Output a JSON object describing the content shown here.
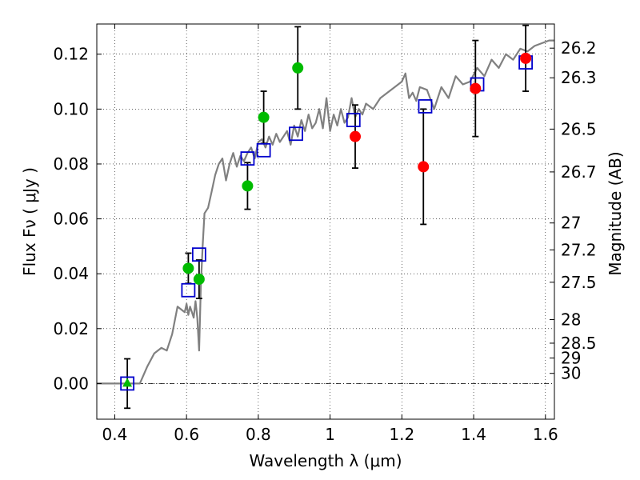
{
  "chart_data": {
    "type": "scatter",
    "title": "",
    "xlabel": "Wavelength  λ (μm)",
    "ylabel": "Flux  Fν  ( μJy )",
    "y2label": "Magnitude (AB)",
    "xlim": [
      0.35,
      1.625
    ],
    "ylim": [
      -0.013,
      0.131
    ],
    "grid": true,
    "x_ticks": [
      0.4,
      0.6,
      0.8,
      1.0,
      1.2,
      1.4,
      1.6
    ],
    "x_tick_labels": [
      "0.4",
      "0.6",
      "0.8",
      "1",
      "1.2",
      "1.4",
      "1.6"
    ],
    "y_ticks": [
      0.0,
      0.02,
      0.04,
      0.06,
      0.08,
      0.1,
      0.12
    ],
    "y_tick_labels": [
      "0.00",
      "0.02",
      "0.04",
      "0.06",
      "0.08",
      "0.10",
      "0.12"
    ],
    "magnitude_ticks": [
      {
        "label": "26.2",
        "flux": 0.1222
      },
      {
        "label": "26.3",
        "flux": 0.1114
      },
      {
        "label": "26.5",
        "flux": 0.0927
      },
      {
        "label": "26.7",
        "flux": 0.0771
      },
      {
        "label": "27",
        "flux": 0.0585
      },
      {
        "label": "27.2",
        "flux": 0.0487
      },
      {
        "label": "27.5",
        "flux": 0.0369
      },
      {
        "label": "28",
        "flux": 0.0233
      },
      {
        "label": "28.5",
        "flux": 0.0147
      },
      {
        "label": "29",
        "flux": 0.0093
      },
      {
        "label": "30",
        "flux": 0.0037
      }
    ],
    "series": [
      {
        "name": "",
        "kind": "line",
        "color": "#808080",
        "x": [
          0.35,
          0.47,
          0.49,
          0.51,
          0.53,
          0.545,
          0.56,
          0.575,
          0.585,
          0.595,
          0.6,
          0.605,
          0.61,
          0.615,
          0.62,
          0.625,
          0.63,
          0.635,
          0.64,
          0.645,
          0.65,
          0.66,
          0.67,
          0.68,
          0.69,
          0.7,
          0.71,
          0.72,
          0.73,
          0.74,
          0.75,
          0.76,
          0.77,
          0.78,
          0.79,
          0.8,
          0.81,
          0.82,
          0.83,
          0.84,
          0.85,
          0.86,
          0.87,
          0.88,
          0.89,
          0.9,
          0.91,
          0.92,
          0.93,
          0.94,
          0.95,
          0.96,
          0.97,
          0.98,
          0.99,
          1.0,
          1.01,
          1.02,
          1.03,
          1.04,
          1.05,
          1.06,
          1.07,
          1.08,
          1.09,
          1.1,
          1.12,
          1.14,
          1.16,
          1.18,
          1.2,
          1.21,
          1.22,
          1.23,
          1.24,
          1.25,
          1.27,
          1.29,
          1.31,
          1.33,
          1.35,
          1.37,
          1.39,
          1.41,
          1.43,
          1.45,
          1.47,
          1.49,
          1.51,
          1.53,
          1.55,
          1.57,
          1.59,
          1.61,
          1.625
        ],
        "y": [
          0.0,
          0.0,
          0.006,
          0.011,
          0.013,
          0.012,
          0.018,
          0.028,
          0.027,
          0.026,
          0.029,
          0.025,
          0.028,
          0.026,
          0.024,
          0.03,
          0.024,
          0.012,
          0.036,
          0.05,
          0.062,
          0.064,
          0.07,
          0.076,
          0.08,
          0.082,
          0.074,
          0.08,
          0.084,
          0.079,
          0.083,
          0.081,
          0.084,
          0.086,
          0.082,
          0.088,
          0.089,
          0.086,
          0.09,
          0.087,
          0.091,
          0.088,
          0.09,
          0.092,
          0.087,
          0.094,
          0.09,
          0.096,
          0.092,
          0.098,
          0.093,
          0.095,
          0.1,
          0.093,
          0.104,
          0.092,
          0.098,
          0.094,
          0.1,
          0.095,
          0.097,
          0.104,
          0.097,
          0.1,
          0.098,
          0.102,
          0.1,
          0.104,
          0.106,
          0.108,
          0.11,
          0.113,
          0.104,
          0.106,
          0.103,
          0.108,
          0.107,
          0.1,
          0.108,
          0.104,
          0.112,
          0.109,
          0.11,
          0.115,
          0.112,
          0.118,
          0.115,
          0.12,
          0.118,
          0.122,
          0.121,
          0.123,
          0.124,
          0.125,
          0.125
        ]
      },
      {
        "name": "",
        "kind": "open-square",
        "color": "#0000cc",
        "x": [
          0.435,
          0.605,
          0.635,
          0.77,
          0.815,
          0.905,
          1.065,
          1.265,
          1.41,
          1.545
        ],
        "y": [
          0.0,
          0.034,
          0.047,
          0.082,
          0.085,
          0.091,
          0.096,
          0.101,
          0.109,
          0.117
        ]
      },
      {
        "name": "",
        "kind": "filled-circle",
        "color": "#00bb00",
        "x": [
          0.605,
          0.635,
          0.77,
          0.815,
          0.91
        ],
        "y": [
          0.042,
          0.038,
          0.072,
          0.097,
          0.115
        ],
        "err": [
          0.0055,
          0.007,
          0.0085,
          0.0095,
          0.015
        ]
      },
      {
        "name": "",
        "kind": "filled-circle",
        "color": "#ff0000",
        "x": [
          1.07,
          1.26,
          1.405,
          1.545
        ],
        "y": [
          0.09,
          0.079,
          0.1075,
          0.1185
        ],
        "err": [
          0.0115,
          0.021,
          0.0175,
          0.012
        ]
      },
      {
        "name": "",
        "kind": "triangle",
        "color": "#00bb00",
        "x": [
          0.435
        ],
        "y": [
          0.0
        ],
        "err": [
          0.009
        ]
      }
    ]
  }
}
